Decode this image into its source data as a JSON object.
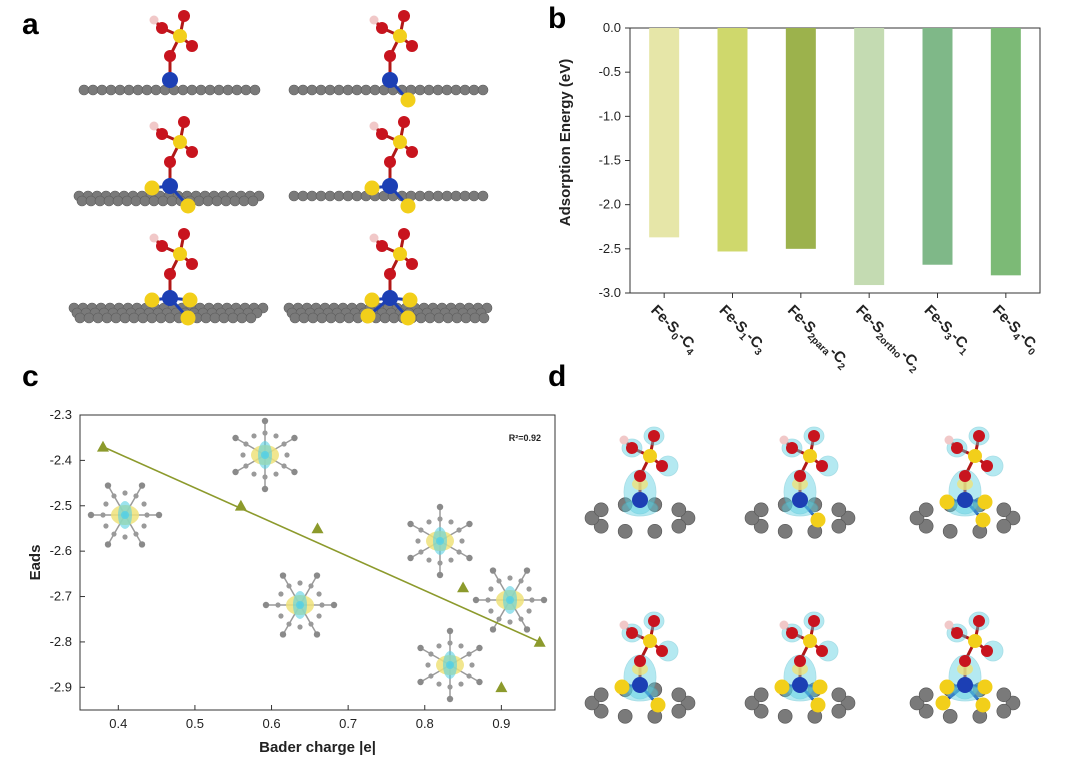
{
  "panels": {
    "a": "a",
    "b": "b",
    "c": "c",
    "d": "d"
  },
  "colors": {
    "carbon": "#7a7a7a",
    "iron": "#1c3fb4",
    "sulfur": "#f2cf1a",
    "oxygen": "#c8141e",
    "hydrogen": "#f1c8c8",
    "trend": "#8c9a2c",
    "iso_cyan": "#5ad0e2",
    "iso_yellow": "#eee27a"
  },
  "chart_data": [
    {
      "panel": "b",
      "type": "bar",
      "title": "",
      "xlabel": "",
      "ylabel": "Adsorption Energy (eV)",
      "ylim": [
        -3.0,
        0.0
      ],
      "yticks": [
        "0.0",
        "-0.5",
        "-1.0",
        "-1.5",
        "-2.0",
        "-2.5",
        "-3.0"
      ],
      "categories": [
        {
          "base": "Fe-S",
          "sub1": "0",
          "mid": "-C",
          "sub2": "4"
        },
        {
          "base": "Fe-S",
          "sub1": "1",
          "mid": "-C",
          "sub2": "3"
        },
        {
          "base": "Fe-S",
          "sub1": "2para",
          "mid": "-C",
          "sub2": "2"
        },
        {
          "base": "Fe-S",
          "sub1": "2ortho",
          "mid": "-C",
          "sub2": "2"
        },
        {
          "base": "Fe-S",
          "sub1": "3",
          "mid": "-C",
          "sub2": "1"
        },
        {
          "base": "Fe-S",
          "sub1": "4",
          "mid": "-C",
          "sub2": "0"
        }
      ],
      "values": [
        -2.37,
        -2.53,
        -2.5,
        -2.91,
        -2.68,
        -2.8
      ],
      "bar_colors": [
        "#e6e6a8",
        "#cfd86c",
        "#9cb24c",
        "#c4dbb2",
        "#7fb888",
        "#7cba76"
      ]
    },
    {
      "panel": "c",
      "type": "scatter",
      "title": "",
      "xlabel": "Bader charge |e|",
      "ylabel": "Eads",
      "xlim": [
        0.35,
        0.97
      ],
      "ylim": [
        -2.95,
        -2.3
      ],
      "xticks": [
        "0.4",
        "0.5",
        "0.6",
        "0.7",
        "0.8",
        "0.9"
      ],
      "yticks": [
        "-2.3",
        "-2.4",
        "-2.5",
        "-2.6",
        "-2.7",
        "-2.8",
        "-2.9"
      ],
      "annotation": "R²=0.92",
      "points": [
        {
          "x": 0.38,
          "y": -2.37
        },
        {
          "x": 0.56,
          "y": -2.5
        },
        {
          "x": 0.66,
          "y": -2.55
        },
        {
          "x": 0.85,
          "y": -2.68
        },
        {
          "x": 0.9,
          "y": -2.9
        },
        {
          "x": 0.95,
          "y": -2.8
        }
      ],
      "fit": {
        "x1": 0.38,
        "y1": -2.37,
        "x2": 0.95,
        "y2": -2.8
      }
    }
  ]
}
